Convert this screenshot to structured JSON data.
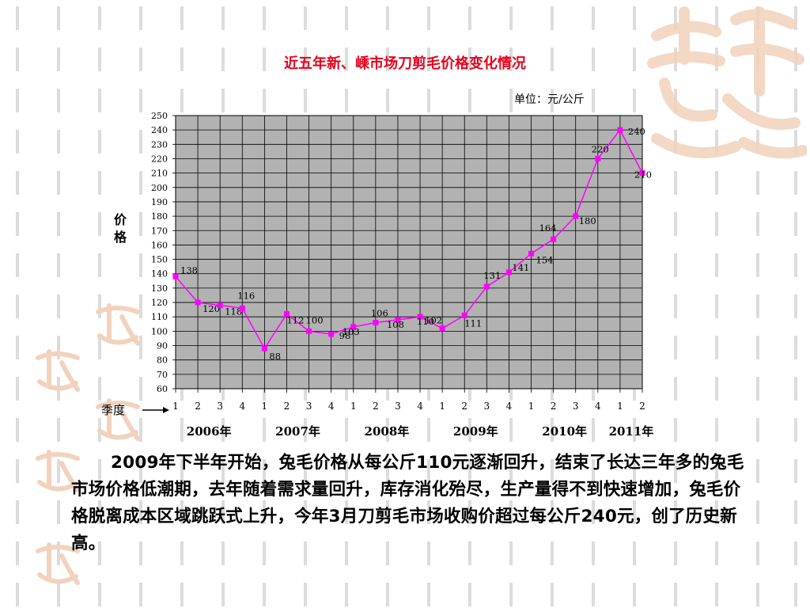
{
  "chart_data": {
    "type": "line",
    "title": "近五年新、嵊市场刀剪毛价格变化情况",
    "unit_label": "单位：元/公斤",
    "ylabel": "价格",
    "xlabel": "季度",
    "ylim": [
      60,
      250
    ],
    "ytick_step": 10,
    "grid": true,
    "x": [
      "1",
      "2",
      "3",
      "4",
      "1",
      "2",
      "3",
      "4",
      "1",
      "2",
      "3",
      "4",
      "1",
      "2",
      "3",
      "4",
      "1",
      "2",
      "3",
      "4",
      "1",
      "2"
    ],
    "values": [
      138,
      120,
      118,
      116,
      88,
      112,
      100,
      98,
      103,
      106,
      108,
      110,
      102,
      111,
      131,
      141,
      154,
      164,
      180,
      220,
      240,
      210
    ],
    "years": [
      {
        "label": "2006年",
        "start": 0,
        "end": 3
      },
      {
        "label": "2007年",
        "start": 4,
        "end": 7
      },
      {
        "label": "2008年",
        "start": 8,
        "end": 11
      },
      {
        "label": "2009年",
        "start": 12,
        "end": 15
      },
      {
        "label": "2010年",
        "start": 16,
        "end": 19
      },
      {
        "label": "2011年",
        "start": 20,
        "end": 21
      }
    ],
    "line_color": "#ff00ff",
    "plot_bg": "#b2b2b2"
  },
  "paragraph": {
    "run1": "2009",
    "run2": "年下半年开始，兔毛价格从每公斤",
    "run3": "110",
    "run4": "元逐渐回升，结束了长达三年多的兔毛市场价格低潮期，去年随着需求量回升，库存消化殆尽，生产量得不到快速增加，兔毛价格脱离成本区域跳跃式上升，今年",
    "run5": "3",
    "run6": "月刀剪毛市场收购价超过每公斤",
    "run7": "240",
    "run8": "元，创了历史新高。"
  },
  "colors": {
    "title": "#e8001c",
    "decor_bars": "#dcdcdc",
    "seal": "#f4d9c6"
  }
}
